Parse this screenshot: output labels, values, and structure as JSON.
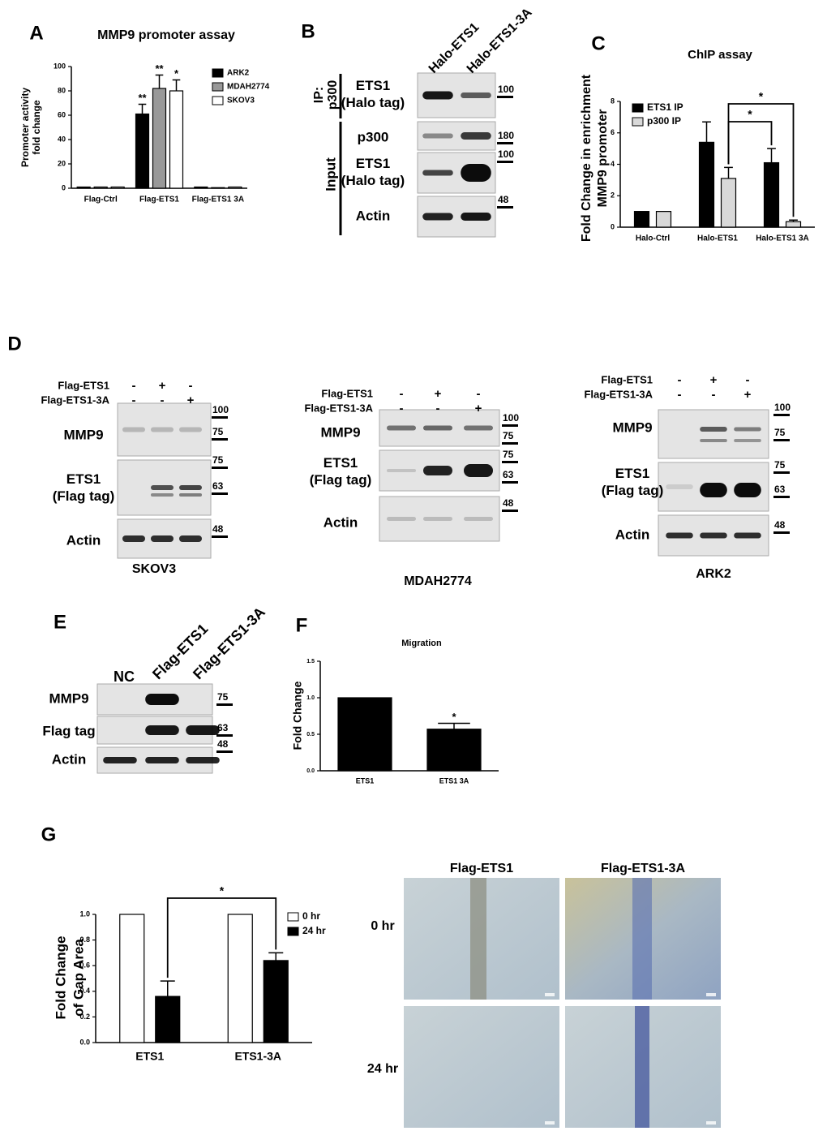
{
  "chart_data": [
    {
      "type": "bar",
      "panel": "A",
      "title": "MMP9 promoter assay",
      "ylabel": [
        "Promoter activity",
        "fold change"
      ],
      "categories": [
        "Flag-Ctrl",
        "Flag-ETS1",
        "Flag-ETS1 3A"
      ],
      "series": [
        {
          "name": "ARK2",
          "color": "#000000",
          "values": [
            1,
            61,
            1
          ],
          "errors": [
            null,
            8,
            null
          ],
          "annotations": [
            null,
            "**",
            null
          ]
        },
        {
          "name": "MDAH2774",
          "color": "#999999",
          "values": [
            1,
            82,
            0.5
          ],
          "errors": [
            null,
            11,
            null
          ],
          "annotations": [
            null,
            "**",
            null
          ]
        },
        {
          "name": "SKOV3",
          "color": "#ffffff",
          "values": [
            1,
            80,
            1
          ],
          "errors": [
            null,
            9,
            null
          ],
          "annotations": [
            null,
            "*",
            null
          ]
        }
      ],
      "ylim": [
        0,
        100
      ],
      "yticks": [
        0,
        20,
        40,
        60,
        80,
        100
      ]
    },
    {
      "type": "bar",
      "panel": "C",
      "title": "ChIP assay",
      "ylabel": [
        "Fold Change in enrichment",
        "MMP9 promoter"
      ],
      "categories": [
        "Halo-Ctrl",
        "Halo-ETS1",
        "Halo-ETS1 3A"
      ],
      "series": [
        {
          "name": "ETS1 IP",
          "color": "#000000",
          "values": [
            1,
            5.4,
            4.1
          ],
          "errors": [
            null,
            1.3,
            0.9
          ]
        },
        {
          "name": "p300 IP",
          "color": "#d9d9d9",
          "values": [
            1,
            3.1,
            0.35
          ],
          "errors": [
            null,
            0.7,
            0.1
          ]
        }
      ],
      "significance": [
        "*",
        "*"
      ],
      "ylim": [
        0,
        8
      ],
      "yticks": [
        0,
        2,
        4,
        6,
        8
      ]
    },
    {
      "type": "bar",
      "panel": "F",
      "title": "Migration",
      "ylabel": [
        "Fold Change"
      ],
      "categories": [
        "ETS1",
        "ETS1 3A"
      ],
      "series": [
        {
          "color": "#000000",
          "values": [
            1.0,
            0.57
          ],
          "errors": [
            null,
            0.08
          ],
          "annotations": [
            null,
            "*"
          ]
        }
      ],
      "ylim": [
        0,
        1.5
      ],
      "yticks": [
        {
          "value": 0,
          "label": "0.0"
        },
        0.5,
        {
          "value": 1,
          "label": "1.0"
        },
        1.5
      ]
    },
    {
      "type": "bar",
      "panel": "G",
      "ylabel": [
        "Fold Change",
        "of Gap Area"
      ],
      "categories": [
        "ETS1",
        "ETS1-3A"
      ],
      "series": [
        {
          "name": "0 hr",
          "color": "#ffffff",
          "values": [
            1,
            1
          ]
        },
        {
          "name": "24 hr",
          "color": "#000000",
          "values": [
            0.36,
            0.64
          ],
          "errors": [
            0.12,
            0.06
          ]
        }
      ],
      "significance": [
        "*"
      ],
      "ylim": [
        0,
        1
      ],
      "yticks": [
        {
          "value": 0,
          "label": "0.0"
        },
        0.2,
        0.4,
        0.6,
        0.8,
        {
          "value": 1,
          "label": "1.0"
        }
      ]
    }
  ],
  "blot_B": {
    "panel": "B",
    "lanes": [
      "Halo-ETS1",
      "Halo-ETS1-3A"
    ],
    "rows": [
      [
        "ETS1",
        "(Halo tag)"
      ],
      [
        "p300"
      ],
      [
        "ETS1",
        "(Halo tag)"
      ],
      [
        "Actin"
      ]
    ],
    "markers": [
      100,
      180,
      100,
      48
    ],
    "groups": [
      [
        "IP:",
        "p300"
      ],
      [
        "Input"
      ]
    ]
  },
  "blots_D": {
    "panel": "D",
    "blots": [
      {
        "treatments": [
          {
            "name": "Flag-ETS1",
            "signs": [
              "-",
              "+",
              "-"
            ]
          },
          {
            "name": "Flag-ETS1-3A",
            "signs": [
              "-",
              "-",
              "+"
            ]
          }
        ],
        "rows": [
          [
            "MMP9"
          ],
          [
            "ETS1",
            "(Flag tag)"
          ],
          [
            "Actin"
          ]
        ],
        "markers": [
          100,
          75,
          75,
          63,
          48
        ],
        "cell_line": "SKOV3"
      },
      {
        "treatments": [
          {
            "name": "Flag-ETS1",
            "signs": [
              "-",
              "+",
              "-"
            ]
          },
          {
            "name": "Flag-ETS1-3A",
            "signs": [
              "-",
              "-",
              "+"
            ]
          }
        ],
        "rows": [
          [
            "MMP9"
          ],
          [
            "ETS1",
            "(Flag tag)"
          ],
          [
            "Actin"
          ]
        ],
        "markers": [
          100,
          75,
          75,
          63,
          48
        ],
        "cell_line": "MDAH2774"
      },
      {
        "treatments": [
          {
            "name": "Flag-ETS1",
            "signs": [
              "-",
              "+",
              "-"
            ]
          },
          {
            "name": "Flag-ETS1-3A",
            "signs": [
              "-",
              "-",
              "+"
            ]
          }
        ],
        "rows": [
          [
            "MMP9"
          ],
          [
            "ETS1",
            "(Flag tag)"
          ],
          [
            "Actin"
          ]
        ],
        "markers": [
          100,
          75,
          75,
          63,
          48
        ],
        "cell_line": "ARK2"
      }
    ]
  },
  "blot_E": {
    "panel": "E",
    "lanes": [
      "NC",
      "Flag-ETS1",
      "Flag-ETS1-3A"
    ],
    "rows": [
      [
        "MMP9"
      ],
      [
        "Flag tag"
      ],
      [
        "Actin"
      ]
    ],
    "markers": [
      75,
      63,
      48
    ]
  },
  "images_G": {
    "columns": [
      "Flag-ETS1",
      "Flag-ETS1-3A"
    ],
    "rows": [
      "0 hr",
      "24 hr"
    ]
  }
}
